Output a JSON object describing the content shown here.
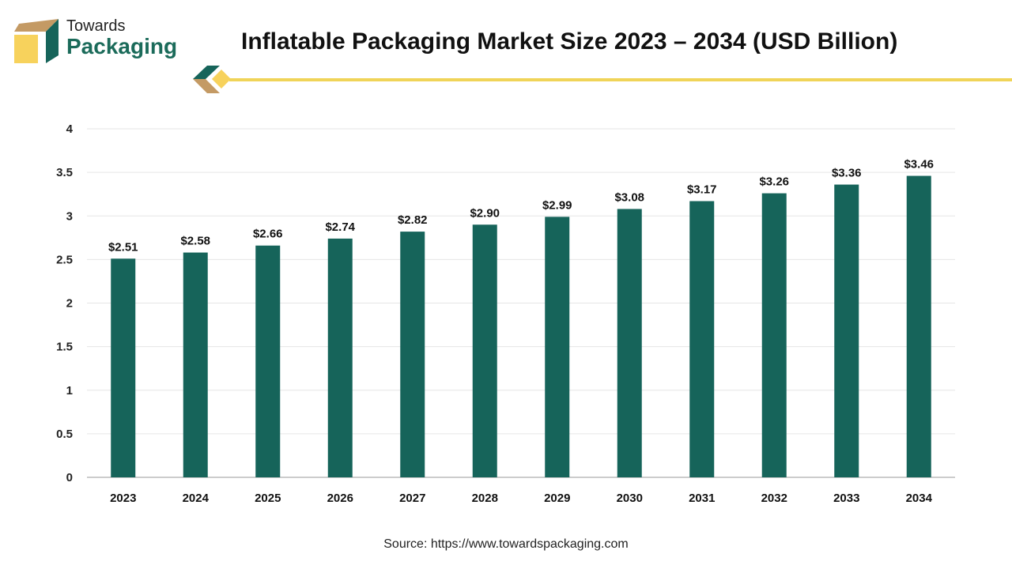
{
  "logo": {
    "line1": "Towards",
    "line2": "Packaging"
  },
  "chart_data": {
    "type": "bar",
    "title": "Inflatable Packaging Market Size 2023 – 2034 (USD Billion)",
    "categories": [
      "2023",
      "2024",
      "2025",
      "2026",
      "2027",
      "2028",
      "2029",
      "2030",
      "2031",
      "2032",
      "2033",
      "2034"
    ],
    "values": [
      2.51,
      2.58,
      2.66,
      2.74,
      2.82,
      2.9,
      2.99,
      3.08,
      3.17,
      3.26,
      3.36,
      3.46
    ],
    "data_labels": [
      "$2.51",
      "$2.58",
      "$2.66",
      "$2.74",
      "$2.82",
      "$2.90",
      "$2.99",
      "$3.08",
      "$3.17",
      "$3.26",
      "$3.36",
      "$3.46"
    ],
    "yticks": [
      "0",
      "0.5",
      "1",
      "1.5",
      "2",
      "2.5",
      "3",
      "3.5",
      "4"
    ],
    "ylim": [
      0,
      4
    ],
    "xlabel": "",
    "ylabel": "",
    "grid": true,
    "bar_color": "#16645a"
  },
  "source": "Source: https://www.towardspackaging.com"
}
